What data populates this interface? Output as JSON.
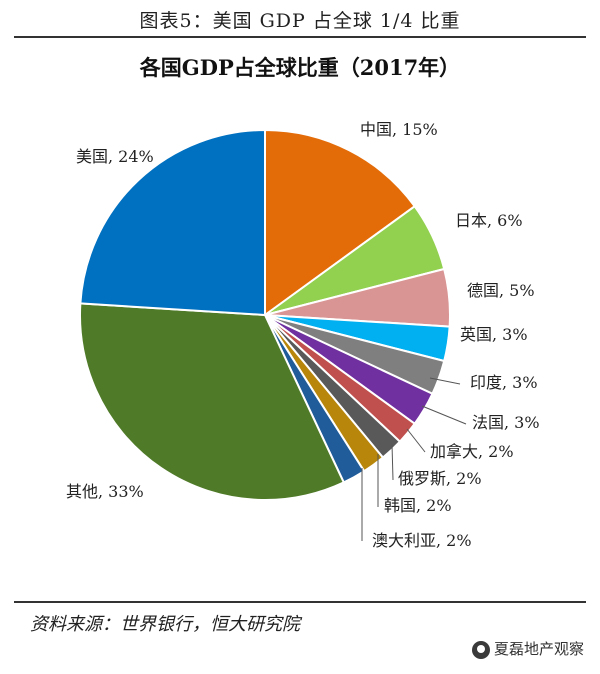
{
  "header": {
    "title": "图表5：美国 GDP 占全球 1/4 比重"
  },
  "footer": {
    "source": "资料来源：世界银行，恒大研究院",
    "watermark": "夏磊地产观察"
  },
  "chart_data": {
    "type": "pie",
    "title": "各国GDP占全球比重（2017年）",
    "slices": [
      {
        "name": "中国",
        "value": 15,
        "label": "中国, 15%",
        "color": "#E36C09"
      },
      {
        "name": "日本",
        "value": 6,
        "label": "日本, 6%",
        "color": "#92D050"
      },
      {
        "name": "德国",
        "value": 5,
        "label": "德国, 5%",
        "color": "#D99594"
      },
      {
        "name": "英国",
        "value": 3,
        "label": "英国, 3%",
        "color": "#00B0F0"
      },
      {
        "name": "印度",
        "value": 3,
        "label": "印度, 3%",
        "color": "#7F7F7F"
      },
      {
        "name": "法国",
        "value": 3,
        "label": "法国, 3%",
        "color": "#7030A0"
      },
      {
        "name": "加拿大",
        "value": 2,
        "label": "加拿大, 2%",
        "color": "#C0504D"
      },
      {
        "name": "俄罗斯",
        "value": 2,
        "label": "俄罗斯, 2%",
        "color": "#595959"
      },
      {
        "name": "韩国",
        "value": 2,
        "label": "韩国, 2%",
        "color": "#B8860B"
      },
      {
        "name": "澳大利亚",
        "value": 2,
        "label": "澳大利亚, 2%",
        "color": "#1F5C99"
      },
      {
        "name": "其他",
        "value": 33,
        "label": "其他, 33%",
        "color": "#4F7A28"
      },
      {
        "name": "美国",
        "value": 24,
        "label": "美国, 24%",
        "color": "#0070C0"
      }
    ]
  }
}
